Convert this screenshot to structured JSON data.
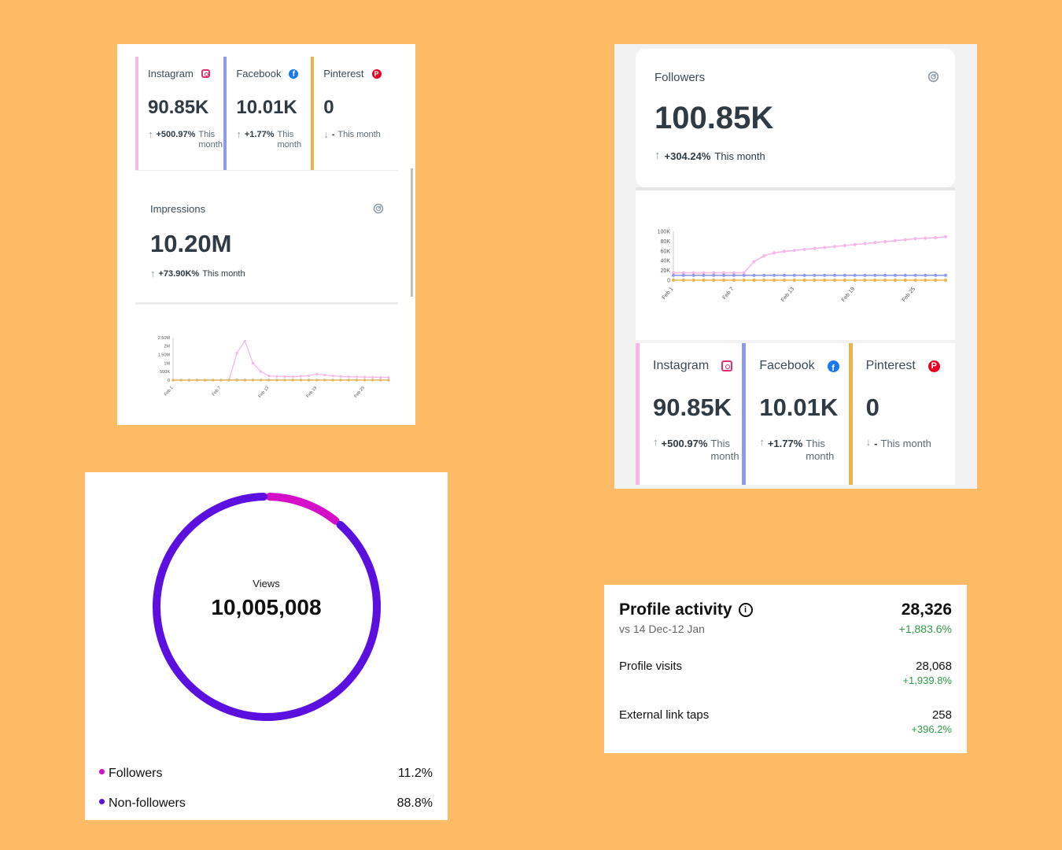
{
  "colors": {
    "background": "#FDBB66",
    "instagram": "#F6B8E8",
    "facebook": "#8C9BEB",
    "pinterest": "#E9B64A",
    "followers_segment": "#D40FC8",
    "non_followers_segment": "#5B10E0",
    "positive": "#2E9B4A"
  },
  "platforms": [
    {
      "name": "Instagram",
      "icon": "instagram-icon",
      "value": "90.85K",
      "change": "+500.97%",
      "period": "This month"
    },
    {
      "name": "Facebook",
      "icon": "facebook-icon",
      "value": "10.01K",
      "change": "+1.77%",
      "period": "This month"
    },
    {
      "name": "Pinterest",
      "icon": "pinterest-icon",
      "value": "0",
      "change": "-",
      "period": "This month"
    }
  ],
  "impressions": {
    "title": "Impressions",
    "value": "10.20M",
    "change": "+73.90K%",
    "period": "This month"
  },
  "followers": {
    "title": "Followers",
    "value": "100.85K",
    "change": "+304.24%",
    "period": "This month"
  },
  "chart_data": [
    {
      "type": "line",
      "title": "",
      "x": [
        "Feb 1",
        "Feb 2",
        "Feb 3",
        "Feb 4",
        "Feb 5",
        "Feb 6",
        "Feb 7",
        "Feb 8",
        "Feb 9",
        "Feb 10",
        "Feb 11",
        "Feb 12",
        "Feb 13",
        "Feb 14",
        "Feb 15",
        "Feb 16",
        "Feb 17",
        "Feb 18",
        "Feb 19",
        "Feb 20",
        "Feb 21",
        "Feb 22",
        "Feb 23",
        "Feb 24",
        "Feb 25",
        "Feb 26",
        "Feb 27",
        "Feb 28"
      ],
      "x_tick_labels": [
        "Feb 1",
        "Feb 7",
        "Feb 13",
        "Feb 19",
        "Feb 25"
      ],
      "y_tick_labels": [
        "0",
        "500K",
        "1M",
        "1.50M",
        "2M",
        "2.50M"
      ],
      "ylim": [
        0,
        2500000
      ],
      "series": [
        {
          "color": "#F6B8E8",
          "values": [
            0,
            0,
            0,
            0,
            0,
            0,
            0,
            0,
            1600000,
            2300000,
            1000000,
            500000,
            250000,
            220000,
            210000,
            200000,
            230000,
            260000,
            360000,
            300000,
            250000,
            220000,
            200000,
            190000,
            180000,
            170000,
            165000,
            160000
          ]
        },
        {
          "color": "#8C9BEB",
          "values": [
            0,
            0,
            0,
            0,
            0,
            0,
            0,
            5000,
            5000,
            5000,
            5000,
            5000,
            5000,
            5000,
            5000,
            5000,
            5000,
            5000,
            5000,
            5000,
            5000,
            5000,
            5000,
            5000,
            5000,
            5000,
            5000,
            5000
          ]
        },
        {
          "color": "#E9B64A",
          "values": [
            0,
            0,
            0,
            0,
            0,
            0,
            0,
            0,
            0,
            0,
            0,
            0,
            0,
            0,
            0,
            0,
            0,
            0,
            0,
            0,
            0,
            0,
            0,
            0,
            0,
            0,
            0,
            0
          ]
        }
      ]
    },
    {
      "type": "line",
      "title": "",
      "x": [
        "Feb 1",
        "Feb 2",
        "Feb 3",
        "Feb 4",
        "Feb 5",
        "Feb 6",
        "Feb 7",
        "Feb 8",
        "Feb 9",
        "Feb 10",
        "Feb 11",
        "Feb 12",
        "Feb 13",
        "Feb 14",
        "Feb 15",
        "Feb 16",
        "Feb 17",
        "Feb 18",
        "Feb 19",
        "Feb 20",
        "Feb 21",
        "Feb 22",
        "Feb 23",
        "Feb 24",
        "Feb 25",
        "Feb 26",
        "Feb 27",
        "Feb 28"
      ],
      "x_tick_labels": [
        "Feb 1",
        "Feb 7",
        "Feb 13",
        "Feb 19",
        "Feb 25"
      ],
      "y_tick_labels": [
        "0",
        "20K",
        "40K",
        "60K",
        "80K",
        "100K"
      ],
      "ylim": [
        0,
        100000
      ],
      "series": [
        {
          "color": "#F6B8E8",
          "values": [
            15000,
            15000,
            15000,
            15000,
            15000,
            15000,
            15000,
            15000,
            38000,
            50000,
            56000,
            59000,
            61000,
            63000,
            65000,
            67000,
            69000,
            71000,
            73000,
            75000,
            77000,
            79000,
            81000,
            83000,
            85000,
            86000,
            87000,
            89000
          ]
        },
        {
          "color": "#8C9BEB",
          "values": [
            10000,
            10000,
            10000,
            10000,
            10000,
            10000,
            10000,
            10000,
            10000,
            10000,
            10000,
            10000,
            10000,
            10000,
            10000,
            10000,
            10000,
            10000,
            10000,
            10000,
            10000,
            10000,
            10000,
            10000,
            10000,
            10000,
            10000,
            10000
          ]
        },
        {
          "color": "#E9B64A",
          "values": [
            0,
            0,
            0,
            0,
            0,
            0,
            0,
            0,
            0,
            0,
            0,
            0,
            0,
            0,
            0,
            0,
            0,
            0,
            0,
            0,
            0,
            0,
            0,
            0,
            0,
            0,
            0,
            0
          ]
        }
      ]
    },
    {
      "type": "pie",
      "title": "",
      "center_label": "Views",
      "center_value": "10,005,008",
      "slices": [
        {
          "label": "Followers",
          "value": 11.2,
          "display": "11.2%",
          "color": "#D40FC8"
        },
        {
          "label": "Non-followers",
          "value": 88.8,
          "display": "88.8%",
          "color": "#5B10E0"
        }
      ]
    }
  ],
  "profile_activity": {
    "title": "Profile activity",
    "subtitle": "vs 14 Dec-12 Jan",
    "total": "28,326",
    "total_change": "+1,883.6%",
    "rows": [
      {
        "label": "Profile visits",
        "value": "28,068",
        "change": "+1,939.8%"
      },
      {
        "label": "External link taps",
        "value": "258",
        "change": "+396.2%"
      }
    ]
  }
}
